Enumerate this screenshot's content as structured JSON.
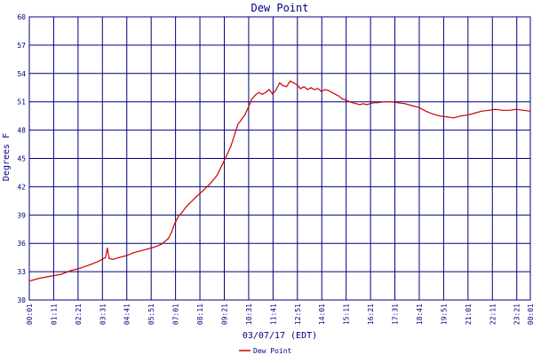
{
  "chart_data": {
    "type": "line",
    "title": "Dew Point",
    "ylabel": "Degrees F",
    "xlabel": "03/07/17 (EDT)",
    "ylim": [
      30,
      60
    ],
    "y_ticks": [
      30,
      33,
      36,
      39,
      42,
      45,
      48,
      51,
      54,
      57,
      60
    ],
    "x_ticks": [
      "00:01",
      "01:11",
      "02:21",
      "03:31",
      "04:41",
      "05:51",
      "07:01",
      "08:11",
      "09:21",
      "10:31",
      "11:41",
      "12:51",
      "14:01",
      "15:11",
      "16:21",
      "17:31",
      "18:41",
      "19:51",
      "21:01",
      "22:11",
      "23:21"
    ],
    "x_tick_last_overlap": "00:01",
    "x_unit_minutes": [
      1,
      1440
    ],
    "grid": true,
    "legend_position": "bottom-center",
    "colors": {
      "line": "#cc0000",
      "grid": "#000080",
      "text": "#000080"
    },
    "series": [
      {
        "name": "Dew Point",
        "x_minutes": [
          1,
          10,
          30,
          60,
          90,
          120,
          150,
          180,
          200,
          210,
          220,
          225,
          230,
          240,
          260,
          280,
          300,
          320,
          340,
          360,
          380,
          400,
          410,
          415,
          420,
          430,
          440,
          450,
          460,
          480,
          500,
          520,
          540,
          560,
          580,
          600,
          610,
          620,
          630,
          640,
          650,
          660,
          670,
          680,
          690,
          700,
          710,
          720,
          730,
          740,
          750,
          760,
          770,
          780,
          790,
          800,
          810,
          820,
          830,
          840,
          850,
          860,
          870,
          880,
          890,
          900,
          910,
          920,
          930,
          940,
          950,
          960,
          970,
          980,
          990,
          1000,
          1020,
          1040,
          1060,
          1080,
          1100,
          1120,
          1140,
          1160,
          1180,
          1200,
          1220,
          1240,
          1260,
          1280,
          1300,
          1320,
          1340,
          1360,
          1380,
          1400,
          1420,
          1440
        ],
        "values": [
          32,
          32.1,
          32.3,
          32.5,
          32.7,
          33.1,
          33.4,
          33.8,
          34.1,
          34.3,
          34.5,
          35.5,
          34.4,
          34.3,
          34.5,
          34.7,
          35,
          35.2,
          35.4,
          35.6,
          35.9,
          36.5,
          37.2,
          37.8,
          38.2,
          38.9,
          39.3,
          39.8,
          40.2,
          40.9,
          41.6,
          42.3,
          43.2,
          44.7,
          46.3,
          48.6,
          49.1,
          49.6,
          50.4,
          51.3,
          51.7,
          52,
          51.8,
          52,
          52.3,
          51.8,
          52.3,
          53,
          52.7,
          52.6,
          53.2,
          53,
          52.8,
          52.4,
          52.6,
          52.3,
          52.5,
          52.3,
          52.4,
          52.1,
          52.3,
          52.2,
          52,
          51.8,
          51.6,
          51.3,
          51.2,
          51,
          50.9,
          50.8,
          50.7,
          50.8,
          50.7,
          50.8,
          50.9,
          50.9,
          51,
          51,
          50.9,
          50.8,
          50.6,
          50.4,
          50,
          49.7,
          49.5,
          49.4,
          49.3,
          49.5,
          49.6,
          49.8,
          50,
          50.1,
          50.2,
          50.1,
          50.1,
          50.2,
          50.1,
          50
        ]
      }
    ]
  }
}
